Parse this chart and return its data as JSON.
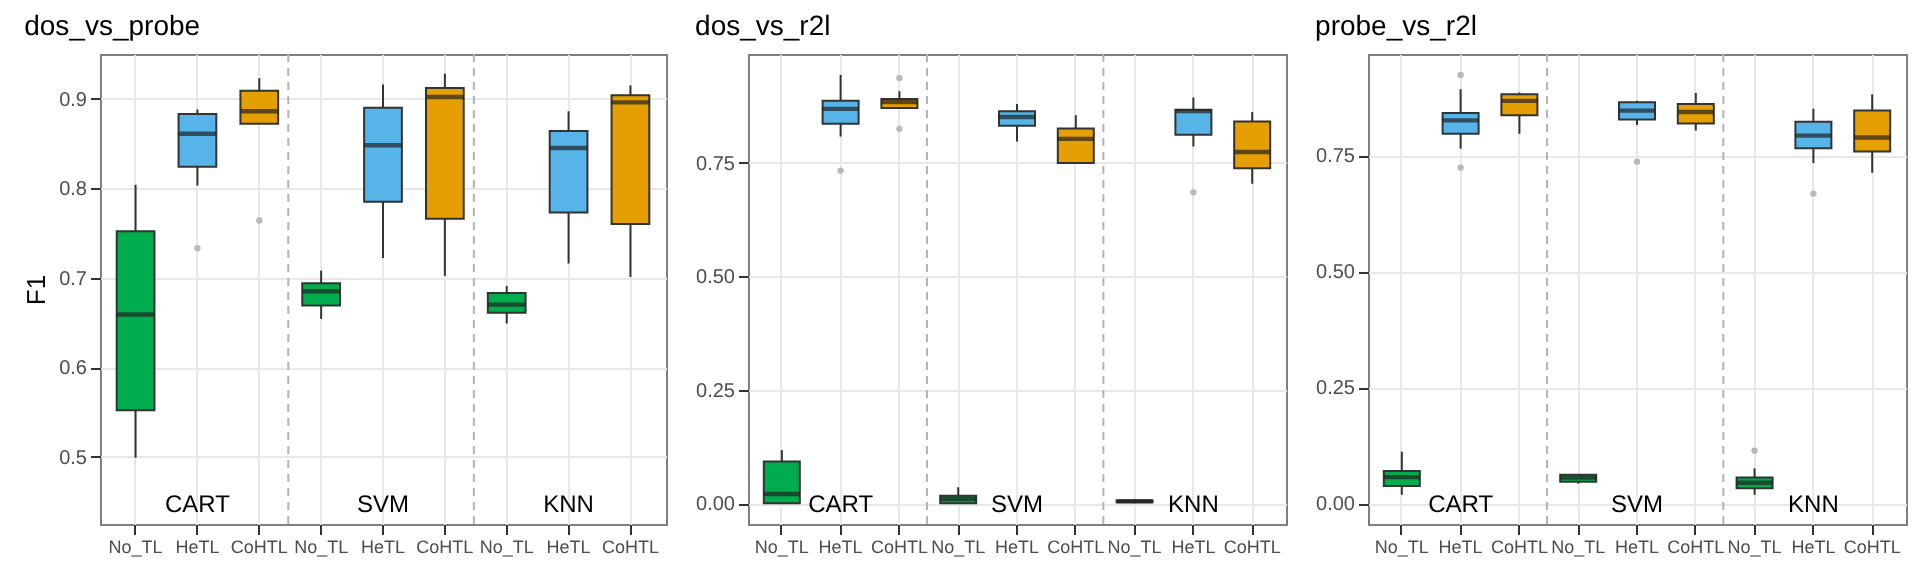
{
  "chart_data": [
    {
      "type": "box",
      "title": "dos_vs_probe",
      "ylabel": "F1",
      "categories": [
        "No_TL",
        "HeTL",
        "CoHTL",
        "No_TL",
        "HeTL",
        "CoHTL",
        "No_TL",
        "HeTL",
        "CoHTL"
      ],
      "colors": [
        "#00ad4e",
        "#56b4e9",
        "#e69f00",
        "#00ad4e",
        "#56b4e9",
        "#e69f00",
        "#00ad4e",
        "#56b4e9",
        "#e69f00"
      ],
      "ylim": [
        0.425,
        0.95
      ],
      "yticks": [
        0.5,
        0.6,
        0.7,
        0.8,
        0.9
      ],
      "grid": true,
      "annotations": [
        "CART",
        "SVM",
        "KNN"
      ],
      "boxes": [
        {
          "low": 0.499,
          "q1": 0.552,
          "median": 0.659,
          "q3": 0.752,
          "high": 0.804
        },
        {
          "low": 0.803,
          "q1": 0.824,
          "median": 0.861,
          "q3": 0.883,
          "high": 0.888,
          "outliers": [
            0.733
          ]
        },
        {
          "low": 0.872,
          "q1": 0.872,
          "median": 0.886,
          "q3": 0.909,
          "high": 0.923,
          "outliers": [
            0.764
          ]
        },
        {
          "low": 0.654,
          "q1": 0.669,
          "median": 0.685,
          "q3": 0.694,
          "high": 0.708
        },
        {
          "low": 0.722,
          "q1": 0.785,
          "median": 0.848,
          "q3": 0.89,
          "high": 0.916
        },
        {
          "low": 0.702,
          "q1": 0.766,
          "median": 0.902,
          "q3": 0.912,
          "high": 0.928
        },
        {
          "low": 0.649,
          "q1": 0.661,
          "median": 0.67,
          "q3": 0.683,
          "high": 0.691
        },
        {
          "low": 0.716,
          "q1": 0.773,
          "median": 0.845,
          "q3": 0.864,
          "high": 0.886
        },
        {
          "low": 0.701,
          "q1": 0.76,
          "median": 0.896,
          "q3": 0.904,
          "high": 0.915
        }
      ]
    },
    {
      "type": "box",
      "title": "dos_vs_r2l",
      "categories": [
        "No_TL",
        "HeTL",
        "CoHTL",
        "No_TL",
        "HeTL",
        "CoHTL",
        "No_TL",
        "HeTL",
        "CoHTL"
      ],
      "colors": [
        "#00ad4e",
        "#56b4e9",
        "#e69f00",
        "#00ad4e",
        "#56b4e9",
        "#e69f00",
        "#00ad4e",
        "#56b4e9",
        "#e69f00"
      ],
      "ylim": [
        -0.046,
        0.99
      ],
      "yticks": [
        {
          "value": 0,
          "label": "0.00"
        },
        {
          "value": 0.25,
          "label": "0.25"
        },
        {
          "value": 0.5,
          "label": "0.50"
        },
        {
          "value": 0.75,
          "label": "0.75"
        }
      ],
      "grid": true,
      "annotations": [
        "CART",
        "SVM",
        "KNN"
      ],
      "boxes": [
        {
          "low": 0,
          "q1": 0,
          "median": 0.02,
          "q3": 0.092,
          "high": 0.117
        },
        {
          "low": 0.808,
          "q1": 0.836,
          "median": 0.869,
          "q3": 0.887,
          "high": 0.944,
          "outliers": [
            0.733
          ]
        },
        {
          "low": 0.871,
          "q1": 0.871,
          "median": 0.884,
          "q3": 0.891,
          "high": 0.908,
          "outliers": [
            0.937,
            0.825
          ]
        },
        {
          "low": 0,
          "q1": 0,
          "median": 0.009,
          "q3": 0.016,
          "high": 0.035
        },
        {
          "low": 0.797,
          "q1": 0.832,
          "median": 0.851,
          "q3": 0.864,
          "high": 0.88
        },
        {
          "low": 0.75,
          "q1": 0.75,
          "median": 0.803,
          "q3": 0.826,
          "high": 0.855
        },
        {
          "low": 0,
          "q1": 0.002,
          "median": 0.004,
          "q3": 0.006,
          "high": 0.008
        },
        {
          "low": 0.786,
          "q1": 0.812,
          "median": 0.864,
          "q3": 0.867,
          "high": 0.894,
          "outliers": [
            0.685
          ]
        },
        {
          "low": 0.704,
          "q1": 0.738,
          "median": 0.774,
          "q3": 0.841,
          "high": 0.862
        }
      ]
    },
    {
      "type": "box",
      "title": "probe_vs_r2l",
      "categories": [
        "No_TL",
        "HeTL",
        "CoHTL",
        "No_TL",
        "HeTL",
        "CoHTL",
        "No_TL",
        "HeTL",
        "CoHTL"
      ],
      "colors": [
        "#00ad4e",
        "#56b4e9",
        "#e69f00",
        "#00ad4e",
        "#56b4e9",
        "#e69f00",
        "#00ad4e",
        "#56b4e9",
        "#e69f00"
      ],
      "ylim": [
        -0.045,
        0.968
      ],
      "yticks": [
        {
          "value": 0,
          "label": "0.00"
        },
        {
          "value": 0.25,
          "label": "0.25"
        },
        {
          "value": 0.5,
          "label": "0.50"
        },
        {
          "value": 0.75,
          "label": "0.75"
        }
      ],
      "grid": true,
      "annotations": [
        "CART",
        "SVM",
        "KNN"
      ],
      "boxes": [
        {
          "low": 0.018,
          "q1": 0.037,
          "median": 0.056,
          "q3": 0.069,
          "high": 0.111
        },
        {
          "low": 0.764,
          "q1": 0.796,
          "median": 0.825,
          "q3": 0.841,
          "high": 0.892,
          "outliers": [
            0.923,
            0.723
          ]
        },
        {
          "low": 0.796,
          "q1": 0.836,
          "median": 0.867,
          "q3": 0.881,
          "high": 0.885
        },
        {
          "low": 0.042,
          "q1": 0.046,
          "median": 0.055,
          "q3": 0.061,
          "high": 0.062
        },
        {
          "low": 0.815,
          "q1": 0.827,
          "median": 0.846,
          "q3": 0.864,
          "high": 0.867,
          "outliers": [
            0.736
          ]
        },
        {
          "low": 0.803,
          "q1": 0.818,
          "median": 0.843,
          "q3": 0.86,
          "high": 0.884
        },
        {
          "low": 0.018,
          "q1": 0.032,
          "median": 0.044,
          "q3": 0.055,
          "high": 0.075,
          "outliers": [
            0.113
          ]
        },
        {
          "low": 0.733,
          "q1": 0.765,
          "median": 0.792,
          "q3": 0.822,
          "high": 0.85,
          "outliers": [
            0.667
          ]
        },
        {
          "low": 0.712,
          "q1": 0.758,
          "median": 0.788,
          "q3": 0.846,
          "high": 0.881
        }
      ]
    }
  ]
}
